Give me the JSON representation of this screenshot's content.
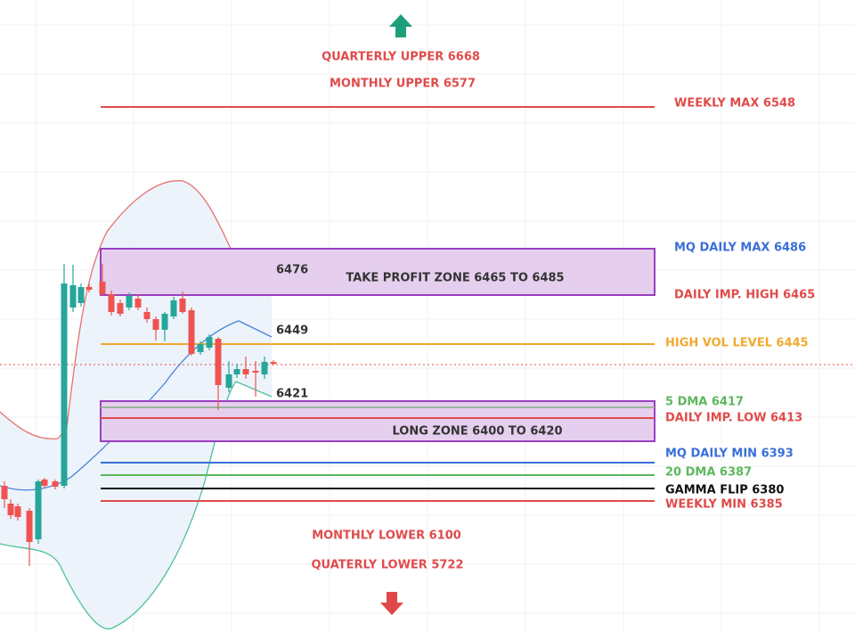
{
  "top_labels": [
    "QUARTERLY UPPER 6668",
    "MONTHLY UPPER 6577"
  ],
  "levels": [
    "WEEKLY MAX 6548",
    "MQ DAILY MAX 6486",
    "DAILY IMP. HIGH 6465",
    "HIGH VOL LEVEL 6445",
    "5 DMA 6417",
    "DAILY IMP. LOW 6413",
    "MQ DAILY MIN 6393",
    "20 DMA 6387",
    "GAMMA FLIP 6380",
    "WEEKLY MIN 6385"
  ],
  "zones": [
    "TAKE PROFIT ZONE 6465 TO 6485",
    "LONG ZONE 6400 TO 6420"
  ],
  "band_labels": [
    "6476",
    "6449",
    "6421"
  ],
  "bottom_labels": [
    "MONTHLY LOWER 6100",
    "QUATERLY LOWER 5722"
  ]
}
